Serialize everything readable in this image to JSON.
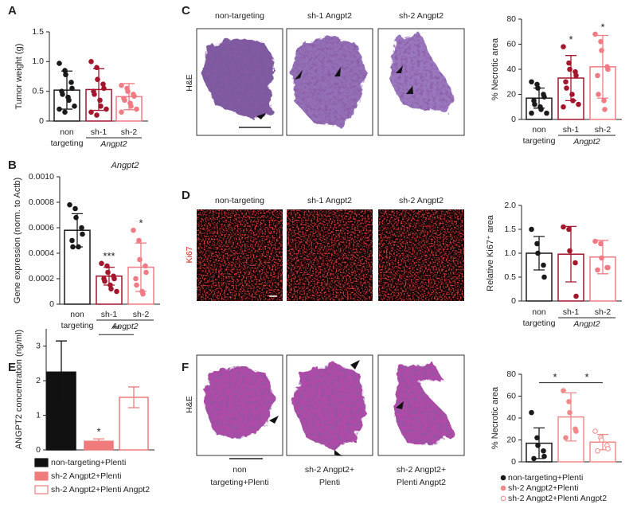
{
  "figure": {
    "panel_letters": [
      "A",
      "B",
      "C",
      "D",
      "E",
      "F"
    ],
    "c_he_label": "H&E",
    "d_ki67_label": "Ki67",
    "f_he_label": "H&E",
    "c_labels": [
      "non-targeting",
      "sh-1 Angpt2",
      "sh-2 Angpt2"
    ],
    "d_labels": [
      "non-targeting",
      "sh-1 Angpt2",
      "sh-2 Angpt2"
    ],
    "f_labels": [
      [
        "non",
        "targeting+Plenti"
      ],
      [
        "sh-2 Angpt2+",
        "Plenti"
      ],
      [
        "sh-2 Angpt2+",
        "Plenti Angpt2"
      ]
    ]
  },
  "chart_data": [
    {
      "type": "bar",
      "ylabel": "Tumor weight (g)",
      "categories": [
        [
          "non",
          "targeting"
        ],
        [
          "sh-1"
        ],
        [
          "sh-2"
        ]
      ],
      "group_label": "Angpt2",
      "values": [
        0.52,
        0.53,
        0.41
      ],
      "errors": [
        0.32,
        0.35,
        0.22
      ],
      "points": [
        [
          0.97,
          0.85,
          0.78,
          0.65,
          0.55,
          0.5,
          0.45,
          0.4,
          0.35,
          0.25,
          0.2,
          0.15
        ],
        [
          1.0,
          0.9,
          0.7,
          0.62,
          0.55,
          0.5,
          0.45,
          0.35,
          0.25,
          0.2,
          0.15,
          0.1
        ],
        [
          0.6,
          0.55,
          0.5,
          0.45,
          0.42,
          0.38,
          0.35,
          0.3,
          0.25,
          0.2,
          0.15
        ]
      ],
      "colors": [
        "#1a1a1a",
        "#a3172d",
        "#f07b84"
      ],
      "fills": [
        "#ffffff",
        "#ffffff",
        "#ffffff"
      ],
      "point_fills": [
        "#1a1a1a",
        "#a3172d",
        "#f07b84"
      ],
      "ylim": [
        0,
        1.5
      ],
      "yticks": [
        0,
        0.5,
        {
          "value": 1,
          "label": "1.0"
        },
        1.5
      ]
    },
    {
      "type": "bar",
      "title": "Angpt2",
      "ylabel": "Gene expression (norm. to Actb)",
      "categories": [
        [
          "non",
          "targeting"
        ],
        [
          "sh-1"
        ],
        [
          "sh-2"
        ]
      ],
      "group_label": "Angpt2",
      "values": [
        0.00058,
        0.00022,
        0.00029
      ],
      "errors": [
        0.00013,
        7e-05,
        0.00019
      ],
      "points": [
        [
          0.00078,
          0.00075,
          0.00068,
          0.0006,
          0.00055,
          0.0005,
          0.00045,
          0.00045
        ],
        [
          0.00032,
          0.0003,
          0.00025,
          0.00022,
          0.0002,
          0.0002,
          0.00018,
          0.00015,
          0.00012,
          0.0001
        ],
        [
          0.00058,
          0.0005,
          0.00035,
          0.0003,
          0.00025,
          0.0002,
          0.00015,
          0.0001,
          8e-05
        ]
      ],
      "stars": [
        null,
        "***",
        "*"
      ],
      "colors": [
        "#1a1a1a",
        "#a3172d",
        "#f07b84"
      ],
      "fills": [
        "#ffffff",
        "#ffffff",
        "#ffffff"
      ],
      "point_fills": [
        "#1a1a1a",
        "#a3172d",
        "#f07b84"
      ],
      "ylim": [
        0,
        0.001
      ],
      "yticks": [
        0,
        0.0002,
        0.0004,
        0.0006,
        0.0008,
        {
          "value": 0.001,
          "label": "0.0010"
        }
      ]
    },
    {
      "type": "bar",
      "ylabel": "% Necrotic area",
      "categories": [
        [
          "non",
          "targeting"
        ],
        [
          "sh-1"
        ],
        [
          "sh-2"
        ]
      ],
      "group_label": "Angpt2",
      "values": [
        17,
        33,
        42
      ],
      "errors": [
        8,
        18,
        25
      ],
      "points": [
        [
          30,
          28,
          25,
          20,
          18,
          15,
          12,
          10,
          8,
          5,
          5
        ],
        [
          58,
          45,
          40,
          38,
          35,
          30,
          25,
          20,
          15,
          12,
          10
        ],
        [
          68,
          62,
          55,
          42,
          40,
          35,
          20,
          15,
          8
        ]
      ],
      "stars": [
        null,
        "*",
        "*"
      ],
      "colors": [
        "#1a1a1a",
        "#a3172d",
        "#f07b84"
      ],
      "fills": [
        "#ffffff",
        "#ffffff",
        "#ffffff"
      ],
      "point_fills": [
        "#1a1a1a",
        "#a3172d",
        "#f07b84"
      ],
      "ylim": [
        0,
        80
      ],
      "yticks": [
        0,
        20,
        40,
        60,
        80
      ]
    },
    {
      "type": "bar",
      "ylabel": "Relative Ki67⁺ area",
      "categories": [
        [
          "non",
          "targeting"
        ],
        [
          "sh-1"
        ],
        [
          "sh-2"
        ]
      ],
      "group_label": "Angpt2",
      "values": [
        1.0,
        0.98,
        0.92
      ],
      "errors": [
        0.35,
        0.58,
        0.35
      ],
      "points": [
        [
          1.5,
          1.2,
          1.0,
          0.75,
          0.5
        ],
        [
          1.55,
          1.5,
          1.05,
          0.8,
          0.1
        ],
        [
          1.25,
          1.2,
          0.9,
          0.7,
          0.7,
          0.65
        ]
      ],
      "colors": [
        "#1a1a1a",
        "#a3172d",
        "#f07b84"
      ],
      "fills": [
        "#ffffff",
        "#ffffff",
        "#ffffff"
      ],
      "point_fills": [
        "#1a1a1a",
        "#a3172d",
        "#f07b84"
      ],
      "ylim": [
        0,
        2
      ],
      "yticks": [
        0,
        0.5,
        {
          "value": 1,
          "label": "1.0"
        },
        1.5,
        {
          "value": 2,
          "label": "2.0"
        }
      ]
    },
    {
      "type": "bar",
      "ylabel": "ANGPT2 concentration (ng/ml)",
      "values": [
        2.25,
        0.25,
        1.52
      ],
      "errors": [
        0.9,
        0.07,
        0.3
      ],
      "stars": [
        null,
        "*",
        null
      ],
      "brackets": [
        {
          "between": [
            1,
            2
          ],
          "label": "**"
        }
      ],
      "legend": [
        "non-targeting+Plenti",
        "sh-2 Angpt2+Plenti",
        "sh-2 Angpt2+Plenti Angpt2"
      ],
      "legend_marker": "square",
      "colors": [
        "#111111",
        "#f07b7b",
        "#f07b7b"
      ],
      "fills": [
        "#111111",
        "#f07b7b",
        "#ffffff"
      ],
      "ylim": [
        0,
        3.5
      ],
      "yticks": [
        0,
        1,
        2,
        3
      ]
    },
    {
      "type": "bar",
      "ylabel": "% Necrotic area",
      "values": [
        17,
        41,
        18
      ],
      "errors": [
        14,
        22,
        7
      ],
      "points": [
        [
          45,
          22,
          15,
          10,
          5,
          3
        ],
        [
          65,
          55,
          45,
          30,
          28,
          22
        ],
        [
          28,
          22,
          20,
          15,
          12,
          10
        ]
      ],
      "brackets": [
        {
          "between": [
            0,
            1
          ],
          "label": "*"
        },
        {
          "between": [
            1,
            2
          ],
          "label": "*"
        }
      ],
      "legend": [
        "non-targeting+Plenti",
        "sh-2 Angpt2+Plenti",
        "sh-2 Angpt2+Plenti Angpt2"
      ],
      "legend_marker": "circle",
      "colors": [
        "#1a1a1a",
        "#f08a8a",
        "#f08a8a"
      ],
      "fills": [
        "#ffffff",
        "#ffffff",
        "#ffffff"
      ],
      "point_fills": [
        "#1a1a1a",
        "#f08a8a",
        "#ffffff"
      ],
      "ylim": [
        0,
        80
      ],
      "yticks": [
        0,
        20,
        40,
        60,
        80
      ]
    }
  ]
}
